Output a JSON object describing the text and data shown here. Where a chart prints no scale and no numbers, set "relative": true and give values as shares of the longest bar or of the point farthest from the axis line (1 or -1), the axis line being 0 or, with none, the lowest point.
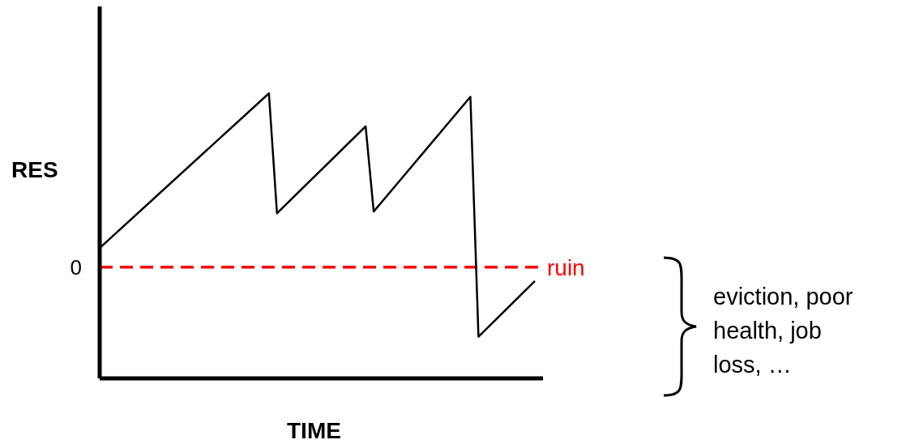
{
  "chart_data": {
    "type": "line",
    "relative": true,
    "xlabel": "TIME",
    "ylabel": "RES",
    "categories": [
      null,
      null,
      null,
      null,
      null,
      null,
      null,
      null,
      null,
      null,
      null,
      null,
      null,
      null,
      null,
      null,
      null,
      null,
      null,
      null,
      null,
      null,
      null,
      null,
      null,
      null,
      null,
      null,
      null,
      null,
      null,
      null,
      null,
      null,
      null,
      null,
      null,
      null,
      null,
      null,
      null,
      null,
      null,
      null,
      null,
      null,
      null,
      null,
      null,
      null,
      null,
      null,
      null,
      null,
      null
    ],
    "series": [
      {
        "color": "#000000",
        "values": [
          0.11,
          null,
          null,
          null,
          null,
          null,
          null,
          null,
          null,
          null,
          null,
          null,
          null,
          null,
          null,
          null,
          null,
          null,
          null,
          null,
          null,
          1,
          0.31,
          null,
          null,
          null,
          null,
          null,
          null,
          null,
          null,
          null,
          null,
          0.81,
          0.32,
          null,
          null,
          null,
          null,
          null,
          null,
          null,
          null,
          null,
          null,
          null,
          0.98,
          -0.4,
          null,
          null,
          null,
          null,
          null,
          null,
          -0.08
        ]
      }
    ],
    "ref_lines": [
      {
        "axis": "y",
        "value": 0,
        "label": "ruin",
        "color": "#ff0000",
        "line_style": "dashed"
      }
    ],
    "annotations": [
      "0",
      "eviction, poor health, job loss, …"
    ],
    "marker": "none"
  }
}
